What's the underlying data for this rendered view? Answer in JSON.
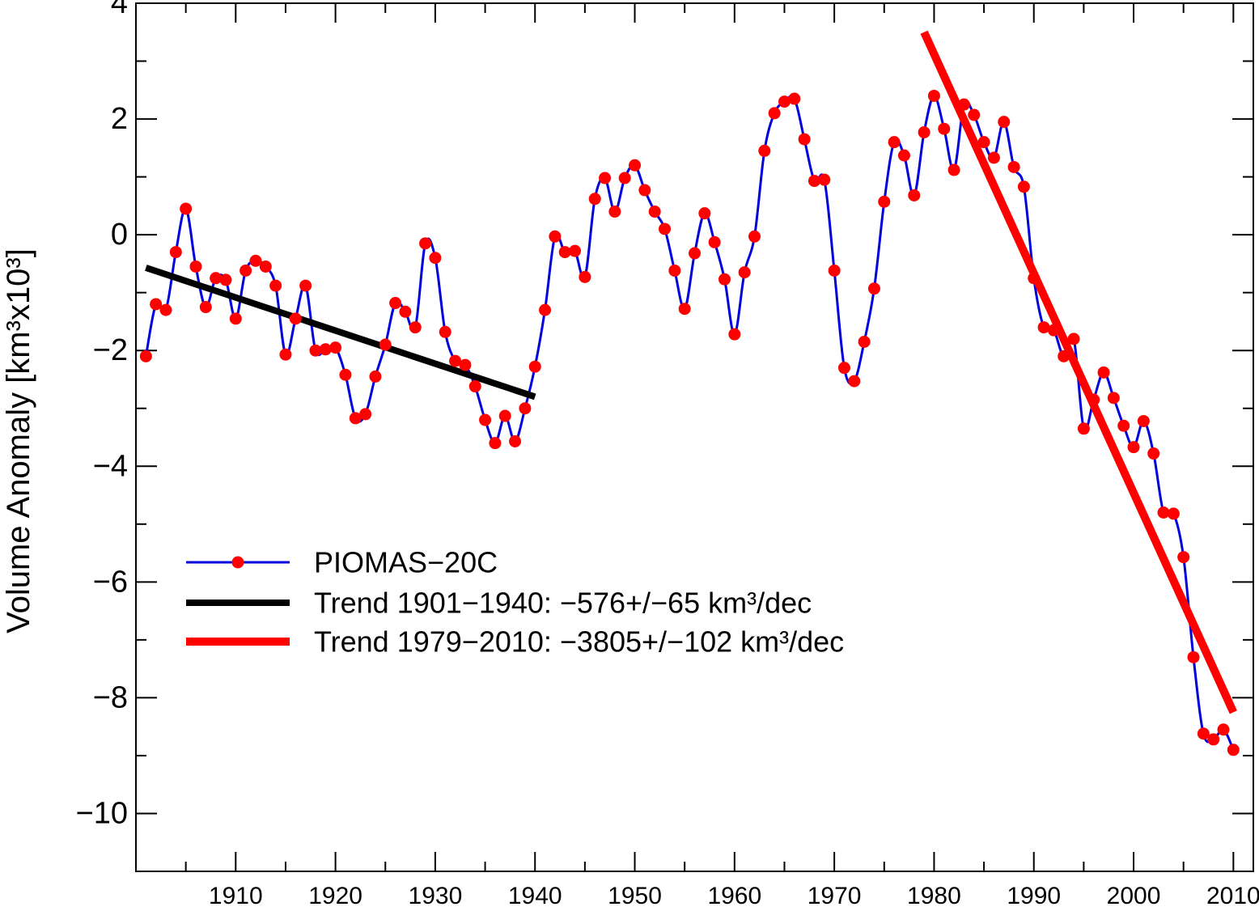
{
  "chart_data": {
    "type": "line",
    "title": "",
    "xlabel": "",
    "ylabel": "Volume Anomaly [km³x10³]",
    "xlim": [
      1900,
      2012
    ],
    "ylim": [
      -11,
      4
    ],
    "x_ticks": [
      "1910",
      "1920",
      "1930",
      "1940",
      "1950",
      "1960",
      "1970",
      "1980",
      "1990",
      "2000",
      "2010"
    ],
    "y_ticks": [
      "4",
      "2",
      "0",
      "−2",
      "−4",
      "−6",
      "−8",
      "−10"
    ],
    "grid": false,
    "legend_position": "lower-left",
    "colors": {
      "piomas": "#0000dd",
      "piomas_markers": "#ff0000",
      "trend_1901_1940": "#000000",
      "trend_1979_2010": "#ff0000"
    },
    "series": [
      {
        "name": "PIOMAS−20C",
        "x": [
          1901,
          1902,
          1903,
          1904,
          1905,
          1906,
          1907,
          1908,
          1909,
          1910,
          1911,
          1912,
          1913,
          1914,
          1915,
          1916,
          1917,
          1918,
          1919,
          1920,
          1921,
          1922,
          1923,
          1924,
          1925,
          1926,
          1927,
          1928,
          1929,
          1930,
          1931,
          1932,
          1933,
          1934,
          1935,
          1936,
          1937,
          1938,
          1939,
          1940,
          1941,
          1942,
          1943,
          1944,
          1945,
          1946,
          1947,
          1948,
          1949,
          1950,
          1951,
          1952,
          1953,
          1954,
          1955,
          1956,
          1957,
          1958,
          1959,
          1960,
          1961,
          1962,
          1963,
          1964,
          1965,
          1966,
          1967,
          1968,
          1969,
          1970,
          1971,
          1972,
          1973,
          1974,
          1975,
          1976,
          1977,
          1978,
          1979,
          1980,
          1981,
          1982,
          1983,
          1984,
          1985,
          1986,
          1987,
          1988,
          1989,
          1990,
          1991,
          1992,
          1993,
          1994,
          1995,
          1996,
          1997,
          1998,
          1999,
          2000,
          2001,
          2002,
          2003,
          2004,
          2005,
          2006,
          2007,
          2008,
          2009,
          2010
        ],
        "values": [
          -2.1,
          -1.2,
          -1.3,
          -0.3,
          0.45,
          -0.55,
          -1.25,
          -0.75,
          -0.78,
          -1.45,
          -0.62,
          -0.45,
          -0.55,
          -0.88,
          -2.07,
          -1.45,
          -0.88,
          -2.0,
          -1.98,
          -1.95,
          -2.42,
          -3.17,
          -3.1,
          -2.45,
          -1.9,
          -1.18,
          -1.33,
          -1.6,
          -0.15,
          -0.4,
          -1.68,
          -2.18,
          -2.25,
          -2.62,
          -3.2,
          -3.6,
          -3.13,
          -3.57,
          -3.0,
          -2.28,
          -1.3,
          -0.03,
          -0.3,
          -0.28,
          -0.73,
          0.62,
          0.98,
          0.4,
          0.98,
          1.2,
          0.77,
          0.4,
          0.1,
          -0.62,
          -1.28,
          -0.32,
          0.37,
          -0.13,
          -0.77,
          -1.72,
          -0.65,
          -0.03,
          1.45,
          2.1,
          2.3,
          2.35,
          1.65,
          0.93,
          0.95,
          -0.62,
          -2.3,
          -2.53,
          -1.85,
          -0.93,
          0.57,
          1.6,
          1.37,
          0.68,
          1.77,
          2.4,
          1.83,
          1.12,
          2.25,
          2.07,
          1.6,
          1.33,
          1.95,
          1.17,
          0.83,
          -0.75,
          -1.6,
          -1.65,
          -2.1,
          -1.8,
          -3.35,
          -2.85,
          -2.38,
          -2.82,
          -3.3,
          -3.67,
          -3.22,
          -3.78,
          -4.8,
          -4.82,
          -5.57,
          -7.3,
          -8.62,
          -8.72,
          -8.55,
          -8.9
        ]
      },
      {
        "name": "Trend 1901−1940:  −576+/−65 km³/dec",
        "x": [
          1901,
          1940
        ],
        "values": [
          -0.57,
          -2.8
        ]
      },
      {
        "name": "Trend 1979−2010: −3805+/−102 km³/dec",
        "x": [
          1979,
          2010
        ],
        "values": [
          3.5,
          -8.25
        ]
      }
    ]
  },
  "legend": {
    "entries": [
      {
        "text": "PIOMAS−20C",
        "color": "#0000dd",
        "marker": "#ff0000"
      },
      {
        "text": "Trend 1901−1940:  −576+/−65 km³/dec",
        "color": "#000000"
      },
      {
        "text": "Trend 1979−2010: −3805+/−102 km³/dec",
        "color": "#ff0000"
      }
    ]
  }
}
